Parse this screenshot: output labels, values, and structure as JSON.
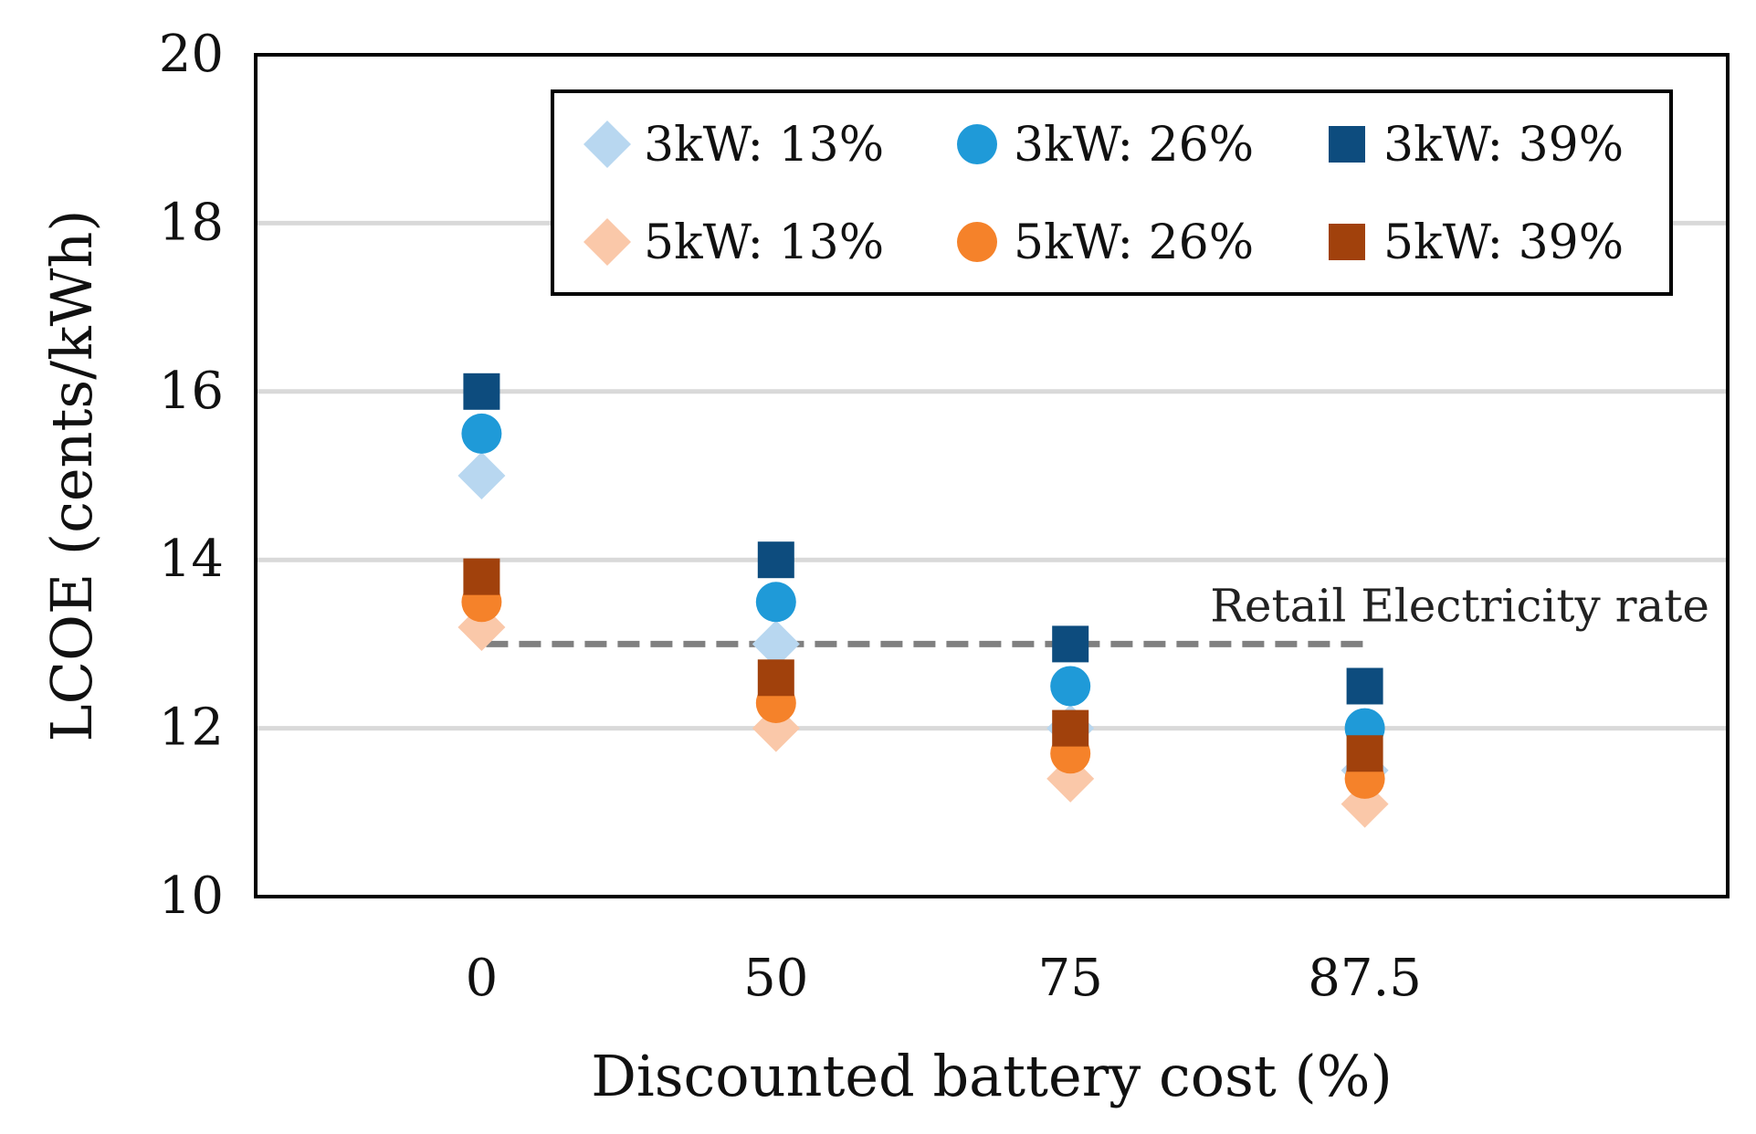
{
  "chart_data": {
    "type": "scatter",
    "title": "",
    "xlabel": "Discounted battery cost (%)",
    "ylabel": "LCOE (cents/kWh)",
    "categories": [
      "0",
      "50",
      "75",
      "87.5"
    ],
    "ylim": [
      10,
      20
    ],
    "yticks": [
      10,
      12,
      14,
      16,
      18,
      20
    ],
    "grid": true,
    "legend_position": "top-right",
    "series": [
      {
        "name": "3kW: 13%",
        "marker": "diamond",
        "color": "#b8d7f0",
        "values": [
          15.0,
          13.0,
          12.0,
          11.5
        ]
      },
      {
        "name": "3kW: 26%",
        "marker": "circle",
        "color": "#1f9ad8",
        "values": [
          15.5,
          13.5,
          12.5,
          12.0
        ]
      },
      {
        "name": "3kW: 39%",
        "marker": "square",
        "color": "#0d4c7e",
        "values": [
          16.0,
          14.0,
          13.0,
          12.5
        ]
      },
      {
        "name": "5kW: 13%",
        "marker": "diamond",
        "color": "#fac8a9",
        "values": [
          13.2,
          12.0,
          11.4,
          11.1
        ]
      },
      {
        "name": "5kW: 26%",
        "marker": "circle",
        "color": "#f5822a",
        "values": [
          13.5,
          12.3,
          11.7,
          11.4
        ]
      },
      {
        "name": "5kW: 39%",
        "marker": "square",
        "color": "#a1410c",
        "values": [
          13.8,
          12.6,
          12.0,
          11.7
        ]
      }
    ],
    "reference_line": {
      "label": "Retail Electricity rate",
      "value": 13,
      "color": "#808080"
    }
  }
}
